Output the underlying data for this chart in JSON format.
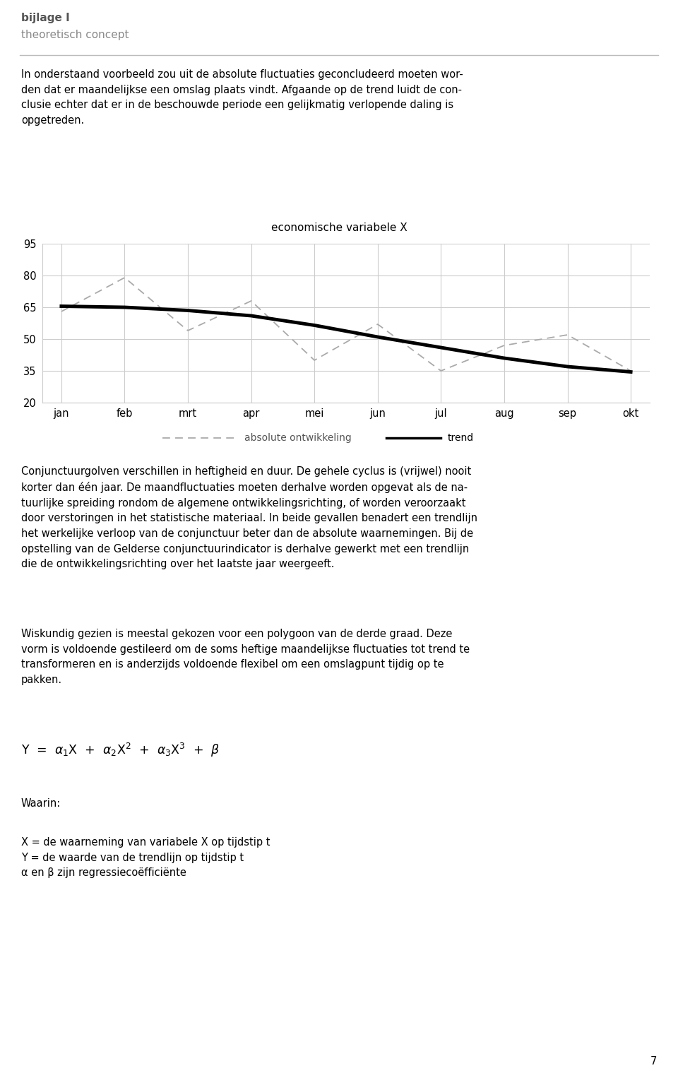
{
  "title": "economische variabele X",
  "months": [
    "jan",
    "feb",
    "mrt",
    "apr",
    "mei",
    "jun",
    "jul",
    "aug",
    "sep",
    "okt"
  ],
  "absolute_values": [
    63,
    79,
    54,
    68,
    40,
    57,
    35,
    47,
    52,
    35
  ],
  "trend_values": [
    65.5,
    65.0,
    63.5,
    61.0,
    56.5,
    51.0,
    46.0,
    41.0,
    37.0,
    34.5
  ],
  "ylim": [
    20,
    95
  ],
  "yticks": [
    20,
    35,
    50,
    65,
    80,
    95
  ],
  "line_color_absolute": "#aaaaaa",
  "line_color_trend": "#000000",
  "grid_color": "#cccccc",
  "bg_color": "#ffffff",
  "header_title": "bijlage I",
  "header_subtitle": "theoretisch concept",
  "legend_dashed_label": "absolute ontwikkeling",
  "legend_solid_label": "trend",
  "footnote": "7",
  "body_text": "In onderstaand voorbeeld zou uit de absolute fluctuaties geconcludeerd moeten wor-\nden dat er maandelijkse een omslag plaats vindt. Afgaande op de trend luidt de con-\nclusie echter dat er in de beschouwde periode een gelijkmatig verlopende daling is\nopgetreden.",
  "caption_text": "Conjunctuurgolven verschillen in heftigheid en duur. De gehele cyclus is (vrijwel) nooit\nkorter dan één jaar. De maandfluctuaties moeten derhalve worden opgevat als de na-\ntuurlijke spreiding rondom de algemene ontwikkelingsrichting, of worden veroorzaakt\ndoor verstoringen in het statistische materiaal. In beide gevallen benadert een trendlijn\nhet werkelijke verloop van de conjunctuur beter dan de absolute waarnemingen. Bij de\nopstelling van de Gelderse conjunctuurindicator is derhalve gewerkt met een trendlijn\ndie de ontwikkelingsrichting over het laatste jaar weergeeft.",
  "wisk_text": "Wiskundig gezien is meestal gekozen voor een polygoon van de derde graad. Deze\nvorm is voldoende gestileerd om de soms heftige maandelijkse fluctuaties tot trend te\ntransformeren en is anderzijds voldoende flexibel om een omslagpunt tijdig op te\npakken.",
  "defs_text": "X = de waarneming van variabele X op tijdstip t\nY = de waarde van de trendlijn op tijdstip t\nα en β zijn regressiecoëfficiënte"
}
